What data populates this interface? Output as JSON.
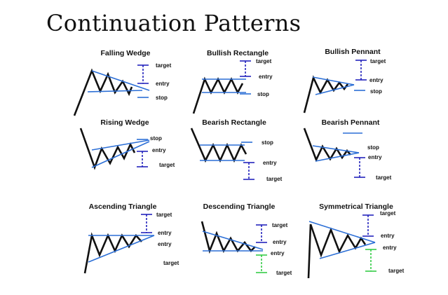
{
  "title": "Continuation Patterns",
  "patterns": [
    {
      "name": "Falling Wedge",
      "labels": [
        "target",
        "entry",
        "stop"
      ]
    },
    {
      "name": "Bullish Rectangle",
      "labels": [
        "target",
        "entry",
        "stop"
      ]
    },
    {
      "name": "Bullish Pennant",
      "labels": [
        "target",
        "entry",
        "stop"
      ]
    },
    {
      "name": "Rising Wedge",
      "labels": [
        "stop",
        "entry",
        "target"
      ]
    },
    {
      "name": "Bearish Rectangle",
      "labels": [
        "stop",
        "entry",
        "target"
      ]
    },
    {
      "name": "Bearish Pennant",
      "labels": [
        "stop",
        "entry",
        "target"
      ]
    },
    {
      "name": "Ascending Triangle",
      "labels": [
        "target",
        "entry",
        "entry",
        "target"
      ]
    },
    {
      "name": "Descending Triangle",
      "labels": [
        "target",
        "entry",
        "entry",
        "target"
      ]
    },
    {
      "name": "Symmetrical Triangle",
      "labels": [
        "target",
        "entry",
        "entry",
        "target"
      ]
    }
  ],
  "colors": {
    "price": "#111111",
    "trendline": "#2c6fd6",
    "levels": "#1616b8",
    "alt_levels": "#27c93a"
  }
}
